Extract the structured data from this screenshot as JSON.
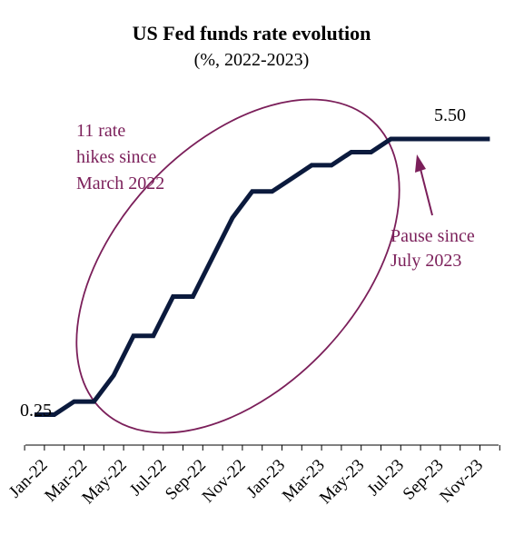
{
  "chart_data": {
    "type": "line",
    "title": "US Fed funds rate evolution",
    "subtitle": "(%, 2022-2023)",
    "xlabel": "",
    "ylabel": "",
    "x_tick_labels": [
      "Jan-22",
      "Mar-22",
      "May-22",
      "Jul-22",
      "Sep-22",
      "Nov-22",
      "Jan-23",
      "Mar-23",
      "May-23",
      "Jul-23",
      "Sep-23",
      "Nov-23"
    ],
    "months": [
      "Jan-22",
      "Feb-22",
      "Mar-22",
      "Apr-22",
      "May-22",
      "Jun-22",
      "Jul-22",
      "Aug-22",
      "Sep-22",
      "Oct-22",
      "Nov-22",
      "Dec-22",
      "Jan-23",
      "Feb-23",
      "Mar-23",
      "Apr-23",
      "May-23",
      "Jun-23",
      "Jul-23",
      "Aug-23",
      "Sep-23",
      "Oct-23",
      "Nov-23",
      "Dec-23"
    ],
    "series": [
      {
        "values": [
          0.25,
          0.25,
          0.5,
          0.5,
          1.0,
          1.75,
          1.75,
          2.5,
          2.5,
          3.25,
          4.0,
          4.5,
          4.5,
          4.75,
          5.0,
          5.0,
          5.25,
          5.25,
          5.5,
          5.5,
          5.5,
          5.5,
          5.5,
          5.5
        ],
        "color": "#0b1a3d"
      }
    ],
    "ylim": [
      0,
      5.5
    ],
    "grid": false,
    "legend": "none",
    "data_labels": [
      {
        "text": "0.25"
      },
      {
        "text": "5.50"
      }
    ],
    "annotations": [
      {
        "lines": [
          "11 rate",
          "hikes since",
          "March 2022"
        ],
        "color": "#7b1f5a"
      },
      {
        "lines": [
          "Pause since",
          "July 2023"
        ],
        "color": "#7b1f5a"
      }
    ]
  }
}
